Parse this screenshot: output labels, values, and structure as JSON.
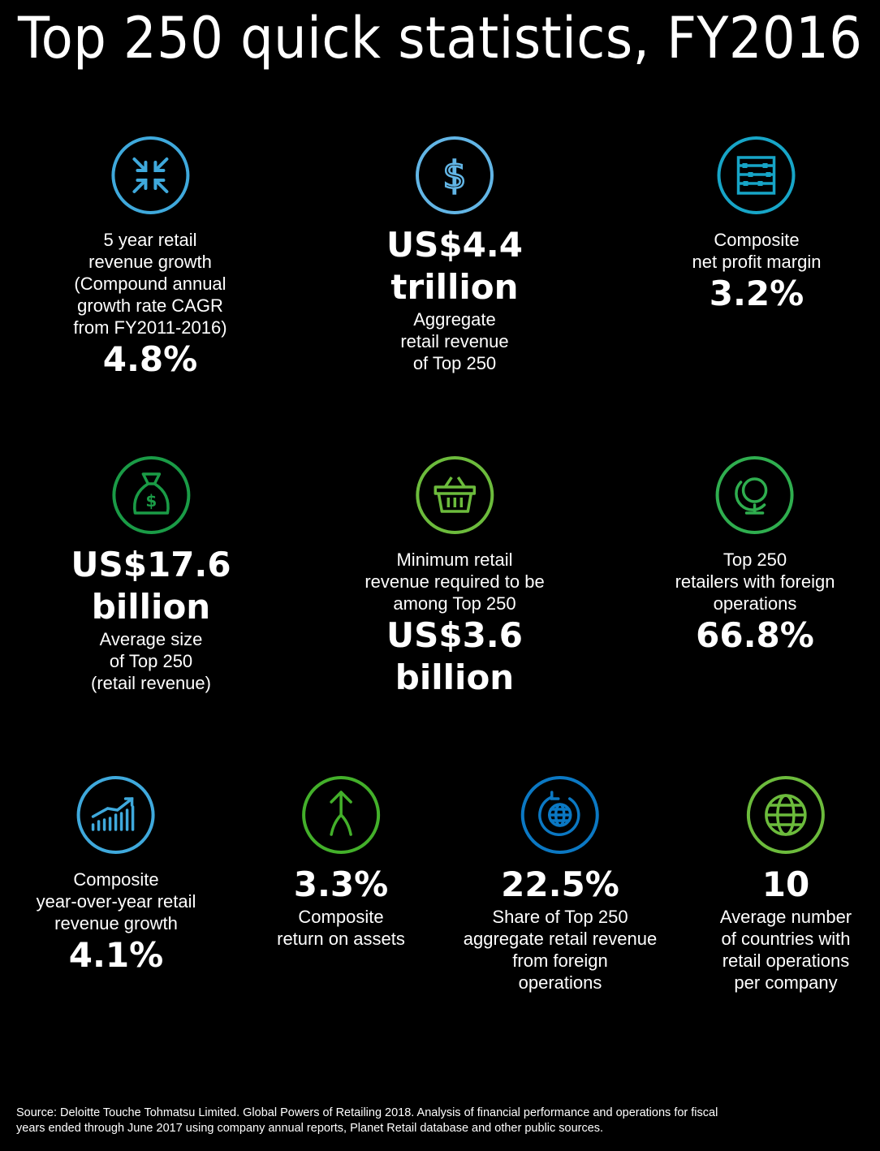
{
  "title": "Top 250 quick statistics, FY2016",
  "colors": {
    "blue_light": "#3fa9dc",
    "blue_mid": "#62b5e5",
    "teal": "#17a5c7",
    "green_dark": "#1a9b46",
    "green": "#6cbb3c",
    "green_mid": "#2fae4f",
    "blue_dark": "#0b78c3",
    "green_globe": "#43b02a"
  },
  "stats": {
    "cagr": {
      "icon": "compress-arrows-icon",
      "label": [
        "5 year retail",
        "revenue growth",
        "(Compound annual",
        "growth rate CAGR",
        "from FY2011-2016)"
      ],
      "value": [
        "4.8%"
      ]
    },
    "aggregate": {
      "icon": "dollar-icon",
      "value": [
        "US$4.4",
        "trillion"
      ],
      "label": [
        "Aggregate",
        "retail revenue",
        "of Top 250"
      ]
    },
    "margin": {
      "icon": "abacus-icon",
      "label": [
        "Composite",
        "net profit margin"
      ],
      "value": [
        "3.2%"
      ]
    },
    "avg_size": {
      "icon": "money-bag-icon",
      "value": [
        "US$17.6",
        "billion"
      ],
      "label": [
        "Average size",
        "of Top 250",
        "(retail revenue)"
      ]
    },
    "minimum": {
      "icon": "basket-icon",
      "label": [
        "Minimum retail",
        "revenue required to be",
        "among Top 250"
      ],
      "value": [
        "US$3.6",
        "billion"
      ]
    },
    "foreign_ops": {
      "icon": "desk-globe-icon",
      "label": [
        "Top 250",
        "retailers with foreign",
        "operations"
      ],
      "value": [
        "66.8%"
      ]
    },
    "yoy": {
      "icon": "growth-chart-icon",
      "label": [
        "Composite",
        "year-over-year retail",
        "revenue growth"
      ],
      "value": [
        "4.1%"
      ]
    },
    "roa": {
      "icon": "split-arrow-icon",
      "value": [
        "3.3%"
      ],
      "label": [
        "Composite",
        "return on assets"
      ]
    },
    "foreign_share": {
      "icon": "rotating-globe-icon",
      "value": [
        "22.5%"
      ],
      "label": [
        "Share of Top 250",
        "aggregate retail revenue",
        "from foreign",
        "operations"
      ]
    },
    "countries": {
      "icon": "globe-icon",
      "value": [
        "10"
      ],
      "label": [
        "Average number",
        "of countries with",
        "retail operations",
        "per company"
      ]
    }
  },
  "source": [
    "Source: Deloitte Touche Tohmatsu Limited. Global Powers of Retailing 2018. Analysis of financial performance and operations for fiscal",
    "years ended through June 2017 using company annual reports, Planet Retail database and other public sources."
  ]
}
